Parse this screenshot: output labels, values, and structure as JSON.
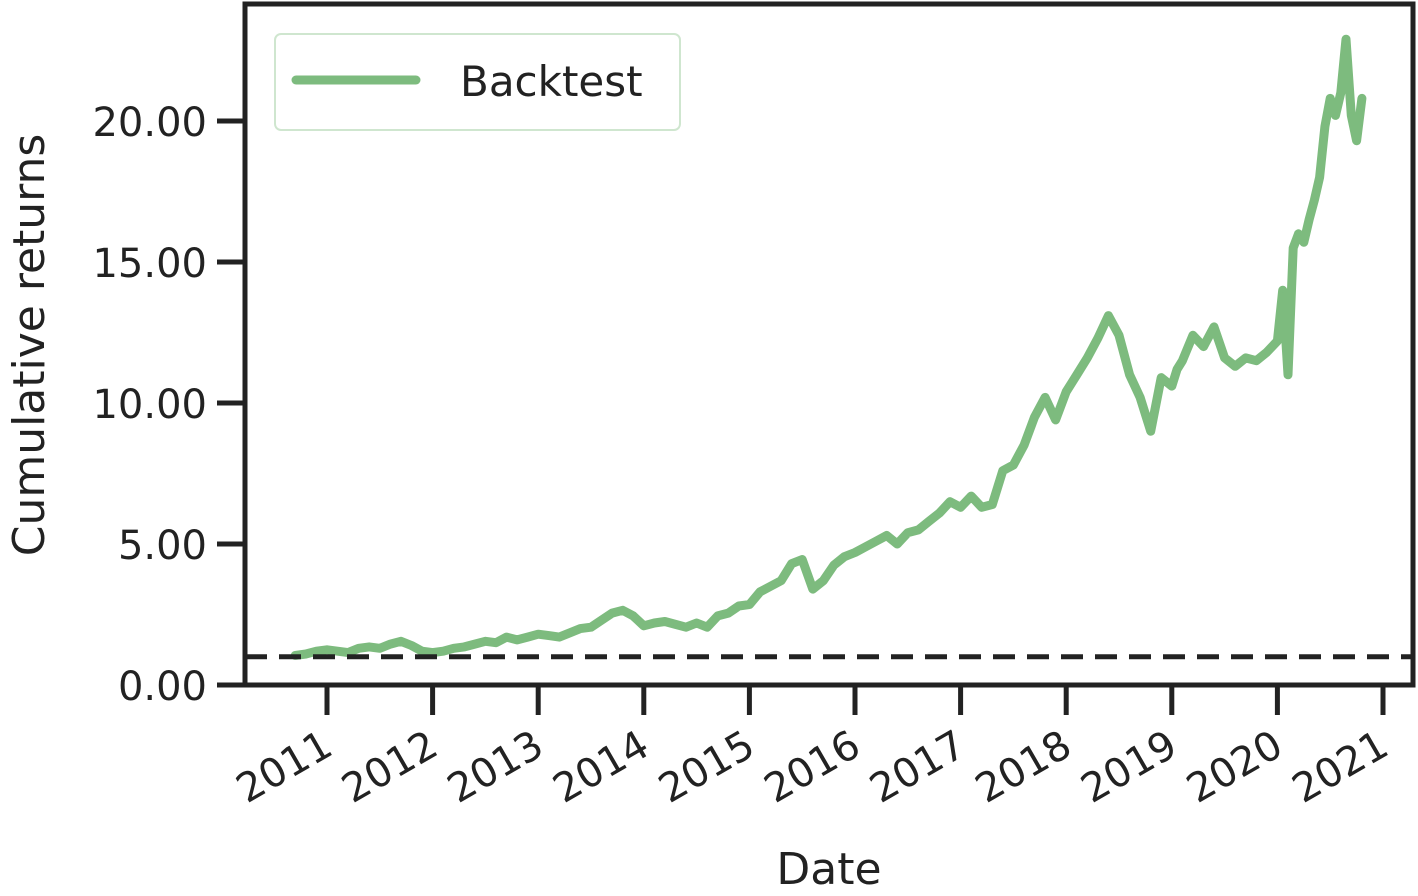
{
  "chart_data": {
    "type": "line",
    "xlabel": "Date",
    "ylabel": "Cumulative returns",
    "xlim": [
      2010.75,
      2021.95
    ],
    "ylim": [
      0,
      20.8
    ],
    "x_ticks": [
      2011,
      2012,
      2013,
      2014,
      2015,
      2016,
      2017,
      2018,
      2019,
      2020,
      2021
    ],
    "x_tick_labels": [
      "2011",
      "2012",
      "2013",
      "2014",
      "2015",
      "2016",
      "2017",
      "2018",
      "2019",
      "2020",
      "2021"
    ],
    "y_ticks": [
      0,
      5,
      10,
      15,
      20
    ],
    "y_tick_labels": [
      "0.00",
      "5.00",
      "10.00",
      "15.00",
      "20.00"
    ],
    "legend": {
      "position": "top-left",
      "entries": [
        "Backtest"
      ]
    },
    "grid": false,
    "reference_line": {
      "y": 1.0,
      "style": "dashed",
      "color": "#222222"
    },
    "series": [
      {
        "name": "Backtest",
        "color": "#7dbb7e",
        "x": [
          2010.7,
          2010.8,
          2010.9,
          2011.0,
          2011.1,
          2011.2,
          2011.3,
          2011.4,
          2011.5,
          2011.6,
          2011.7,
          2011.8,
          2011.9,
          2012.0,
          2012.1,
          2012.2,
          2012.3,
          2012.4,
          2012.5,
          2012.6,
          2012.7,
          2012.8,
          2012.9,
          2013.0,
          2013.1,
          2013.2,
          2013.3,
          2013.4,
          2013.5,
          2013.6,
          2013.7,
          2013.8,
          2013.9,
          2014.0,
          2014.1,
          2014.2,
          2014.3,
          2014.4,
          2014.5,
          2014.6,
          2014.7,
          2014.8,
          2014.9,
          2015.0,
          2015.1,
          2015.2,
          2015.3,
          2015.4,
          2015.5,
          2015.6,
          2015.7,
          2015.8,
          2015.9,
          2016.0,
          2016.1,
          2016.2,
          2016.3,
          2016.4,
          2016.5,
          2016.6,
          2016.7,
          2016.8,
          2016.9,
          2017.0,
          2017.1,
          2017.2,
          2017.3,
          2017.4,
          2017.5,
          2017.6,
          2017.7,
          2017.8,
          2017.9,
          2018.0,
          2018.1,
          2018.2,
          2018.3,
          2018.4,
          2018.5,
          2018.6,
          2018.7,
          2018.8,
          2018.9,
          2019.0,
          2019.05,
          2019.1,
          2019.2,
          2019.3,
          2019.4,
          2019.5,
          2019.6,
          2019.7,
          2019.8,
          2019.9,
          2020.0,
          2020.05,
          2020.1,
          2020.15,
          2020.2,
          2020.25,
          2020.3,
          2020.35,
          2020.4,
          2020.45,
          2020.5,
          2020.55,
          2020.6,
          2020.65,
          2020.7,
          2020.75,
          2020.8
        ],
        "y": [
          1.05,
          1.1,
          1.2,
          1.25,
          1.2,
          1.15,
          1.3,
          1.35,
          1.3,
          1.45,
          1.55,
          1.4,
          1.2,
          1.15,
          1.2,
          1.3,
          1.35,
          1.45,
          1.55,
          1.5,
          1.7,
          1.6,
          1.7,
          1.8,
          1.75,
          1.7,
          1.85,
          2.0,
          2.05,
          2.3,
          2.55,
          2.65,
          2.45,
          2.1,
          2.2,
          2.25,
          2.15,
          2.05,
          2.2,
          2.05,
          2.45,
          2.55,
          2.8,
          2.85,
          3.3,
          3.5,
          3.7,
          4.3,
          4.45,
          3.4,
          3.7,
          4.25,
          4.55,
          4.7,
          4.9,
          5.1,
          5.3,
          5.0,
          5.4,
          5.5,
          5.8,
          6.1,
          6.5,
          6.3,
          6.7,
          6.3,
          6.4,
          7.6,
          7.8,
          8.5,
          9.5,
          10.2,
          9.4,
          10.4,
          11.0,
          11.6,
          12.3,
          13.1,
          12.4,
          11.0,
          10.2,
          9.0,
          10.9,
          10.6,
          11.2,
          11.5,
          12.4,
          12.0,
          12.7,
          11.6,
          11.3,
          11.6,
          11.5,
          11.8,
          12.2,
          14.0,
          11.0,
          15.5,
          16.0,
          15.7,
          16.5,
          17.2,
          18.0,
          19.8,
          20.8,
          20.2,
          21.0,
          22.9,
          20.2,
          19.3,
          20.8
        ]
      }
    ]
  }
}
